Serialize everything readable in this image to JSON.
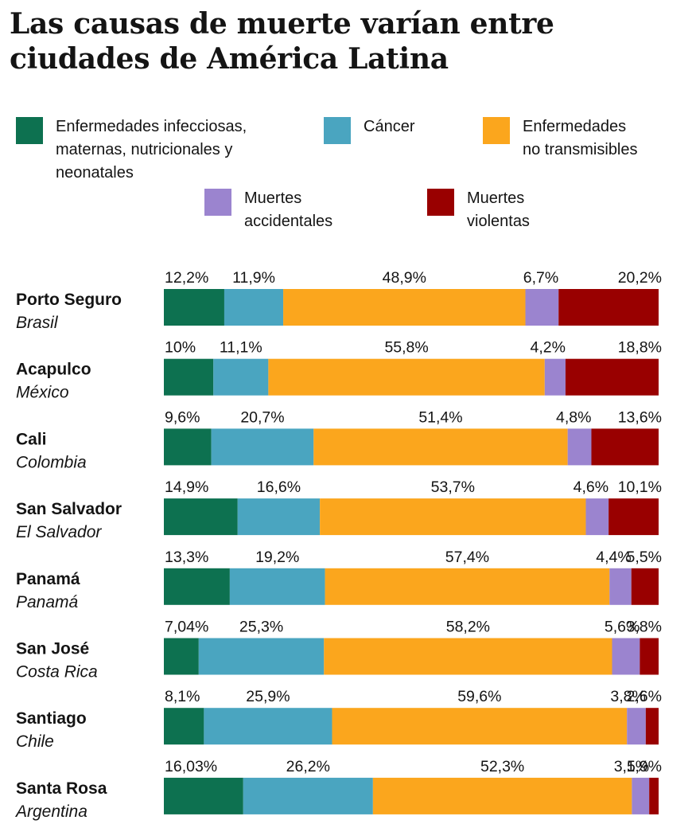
{
  "title": {
    "line1": "Las causas de muerte varían entre",
    "line2": "ciudades de América Latina"
  },
  "legend": [
    {
      "key": "infecciosas",
      "lines": [
        "Enfermedades infecciosas,",
        "maternas, nutricionales y",
        "neonatales"
      ],
      "color": "#0d7150"
    },
    {
      "key": "cancer",
      "lines": [
        "Cáncer"
      ],
      "color": "#4aa5c0"
    },
    {
      "key": "no_transmisibles",
      "lines": [
        "Enfermedades",
        "no transmisibles"
      ],
      "color": "#fba61d"
    },
    {
      "key": "accidentales",
      "lines": [
        "Muertes",
        "accidentales"
      ],
      "color": "#9b84cf"
    },
    {
      "key": "violentas",
      "lines": [
        "Muertes",
        "violentas"
      ],
      "color": "#990000"
    }
  ],
  "chart_data": {
    "type": "bar",
    "orientation": "horizontal",
    "stacked": true,
    "percent_stacked": true,
    "categories": [
      {
        "city": "Porto Seguro",
        "country": "Brasil"
      },
      {
        "city": "Acapulco",
        "country": "México"
      },
      {
        "city": "Cali",
        "country": "Colombia"
      },
      {
        "city": "San Salvador",
        "country": "El Salvador"
      },
      {
        "city": "Panamá",
        "country": "Panamá"
      },
      {
        "city": "San José",
        "country": "Costa Rica"
      },
      {
        "city": "Santiago",
        "country": "Chile"
      },
      {
        "city": "Santa Rosa",
        "country": "Argentina"
      }
    ],
    "series": [
      {
        "name": "Enfermedades infecciosas, maternas, nutricionales y neonatales",
        "color": "#0d7150",
        "values": [
          12.2,
          10,
          9.6,
          14.9,
          13.3,
          7.04,
          8.1,
          16.03
        ],
        "labels": [
          "12,2%",
          "10%",
          "9,6%",
          "14,9%",
          "13,3%",
          "7,04%",
          "8,1%",
          "16,03%"
        ]
      },
      {
        "name": "Cáncer",
        "color": "#4aa5c0",
        "values": [
          11.9,
          11.1,
          20.7,
          16.6,
          19.2,
          25.3,
          25.9,
          26.2
        ],
        "labels": [
          "11,9%",
          "11,1%",
          "20,7%",
          "16,6%",
          "19,2%",
          "25,3%",
          "25,9%",
          "26,2%"
        ]
      },
      {
        "name": "Enfermedades no transmisibles",
        "color": "#fba61d",
        "values": [
          48.9,
          55.8,
          51.4,
          53.7,
          57.4,
          58.2,
          59.6,
          52.3
        ],
        "labels": [
          "48,9%",
          "55,8%",
          "51,4%",
          "53,7%",
          "57,4%",
          "58,2%",
          "59,6%",
          "52,3%"
        ]
      },
      {
        "name": "Muertes accidentales",
        "color": "#9b84cf",
        "values": [
          6.7,
          4.2,
          4.8,
          4.6,
          4.4,
          5.6,
          3.8,
          3.5
        ],
        "labels": [
          "6,7%",
          "4,2%",
          "4,8%",
          "4,6%",
          "4,4%",
          "5,6%",
          "3,8%",
          "3,5%"
        ]
      },
      {
        "name": "Muertes violentas",
        "color": "#990000",
        "values": [
          20.2,
          18.8,
          13.6,
          10.1,
          5.5,
          3.8,
          2.6,
          1.9
        ],
        "labels": [
          "20,2%",
          "18,8%",
          "13,6%",
          "10,1%",
          "5,5%",
          "3,8%",
          "2,6%",
          "1,9%"
        ]
      }
    ]
  }
}
